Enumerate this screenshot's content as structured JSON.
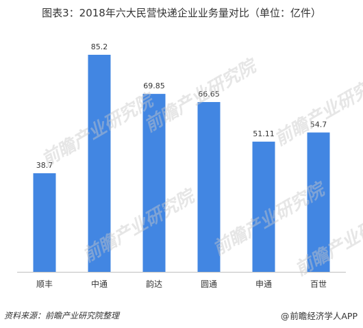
{
  "header": {
    "title": "图表3：2018年六大民营快递企业业务量对比（单位：亿件）"
  },
  "footer": {
    "source": "资料来源：前瞻产业研究院整理",
    "brand": "前瞻经济学人APP",
    "brand_prefix": "@"
  },
  "watermark": {
    "text": "前瞻产业研究院"
  },
  "colors": {
    "bar": "#4286E2",
    "axis": "#BFBFBF",
    "text": "#333333"
  },
  "chart_data": {
    "type": "bar",
    "title": "图表3：2018年六大民营快递企业业务量对比（单位：亿件）",
    "categories": [
      "顺丰",
      "中通",
      "韵达",
      "圆通",
      "申通",
      "百世"
    ],
    "values": [
      38.7,
      85.2,
      69.85,
      66.65,
      51.11,
      54.7
    ],
    "value_labels": [
      "38.7",
      "85.2",
      "69.85",
      "66.65",
      "51.11",
      "54.7"
    ],
    "xlabel": "",
    "ylabel": "",
    "ylim": [
      0,
      85.2
    ],
    "grid": false,
    "legend": "none"
  }
}
